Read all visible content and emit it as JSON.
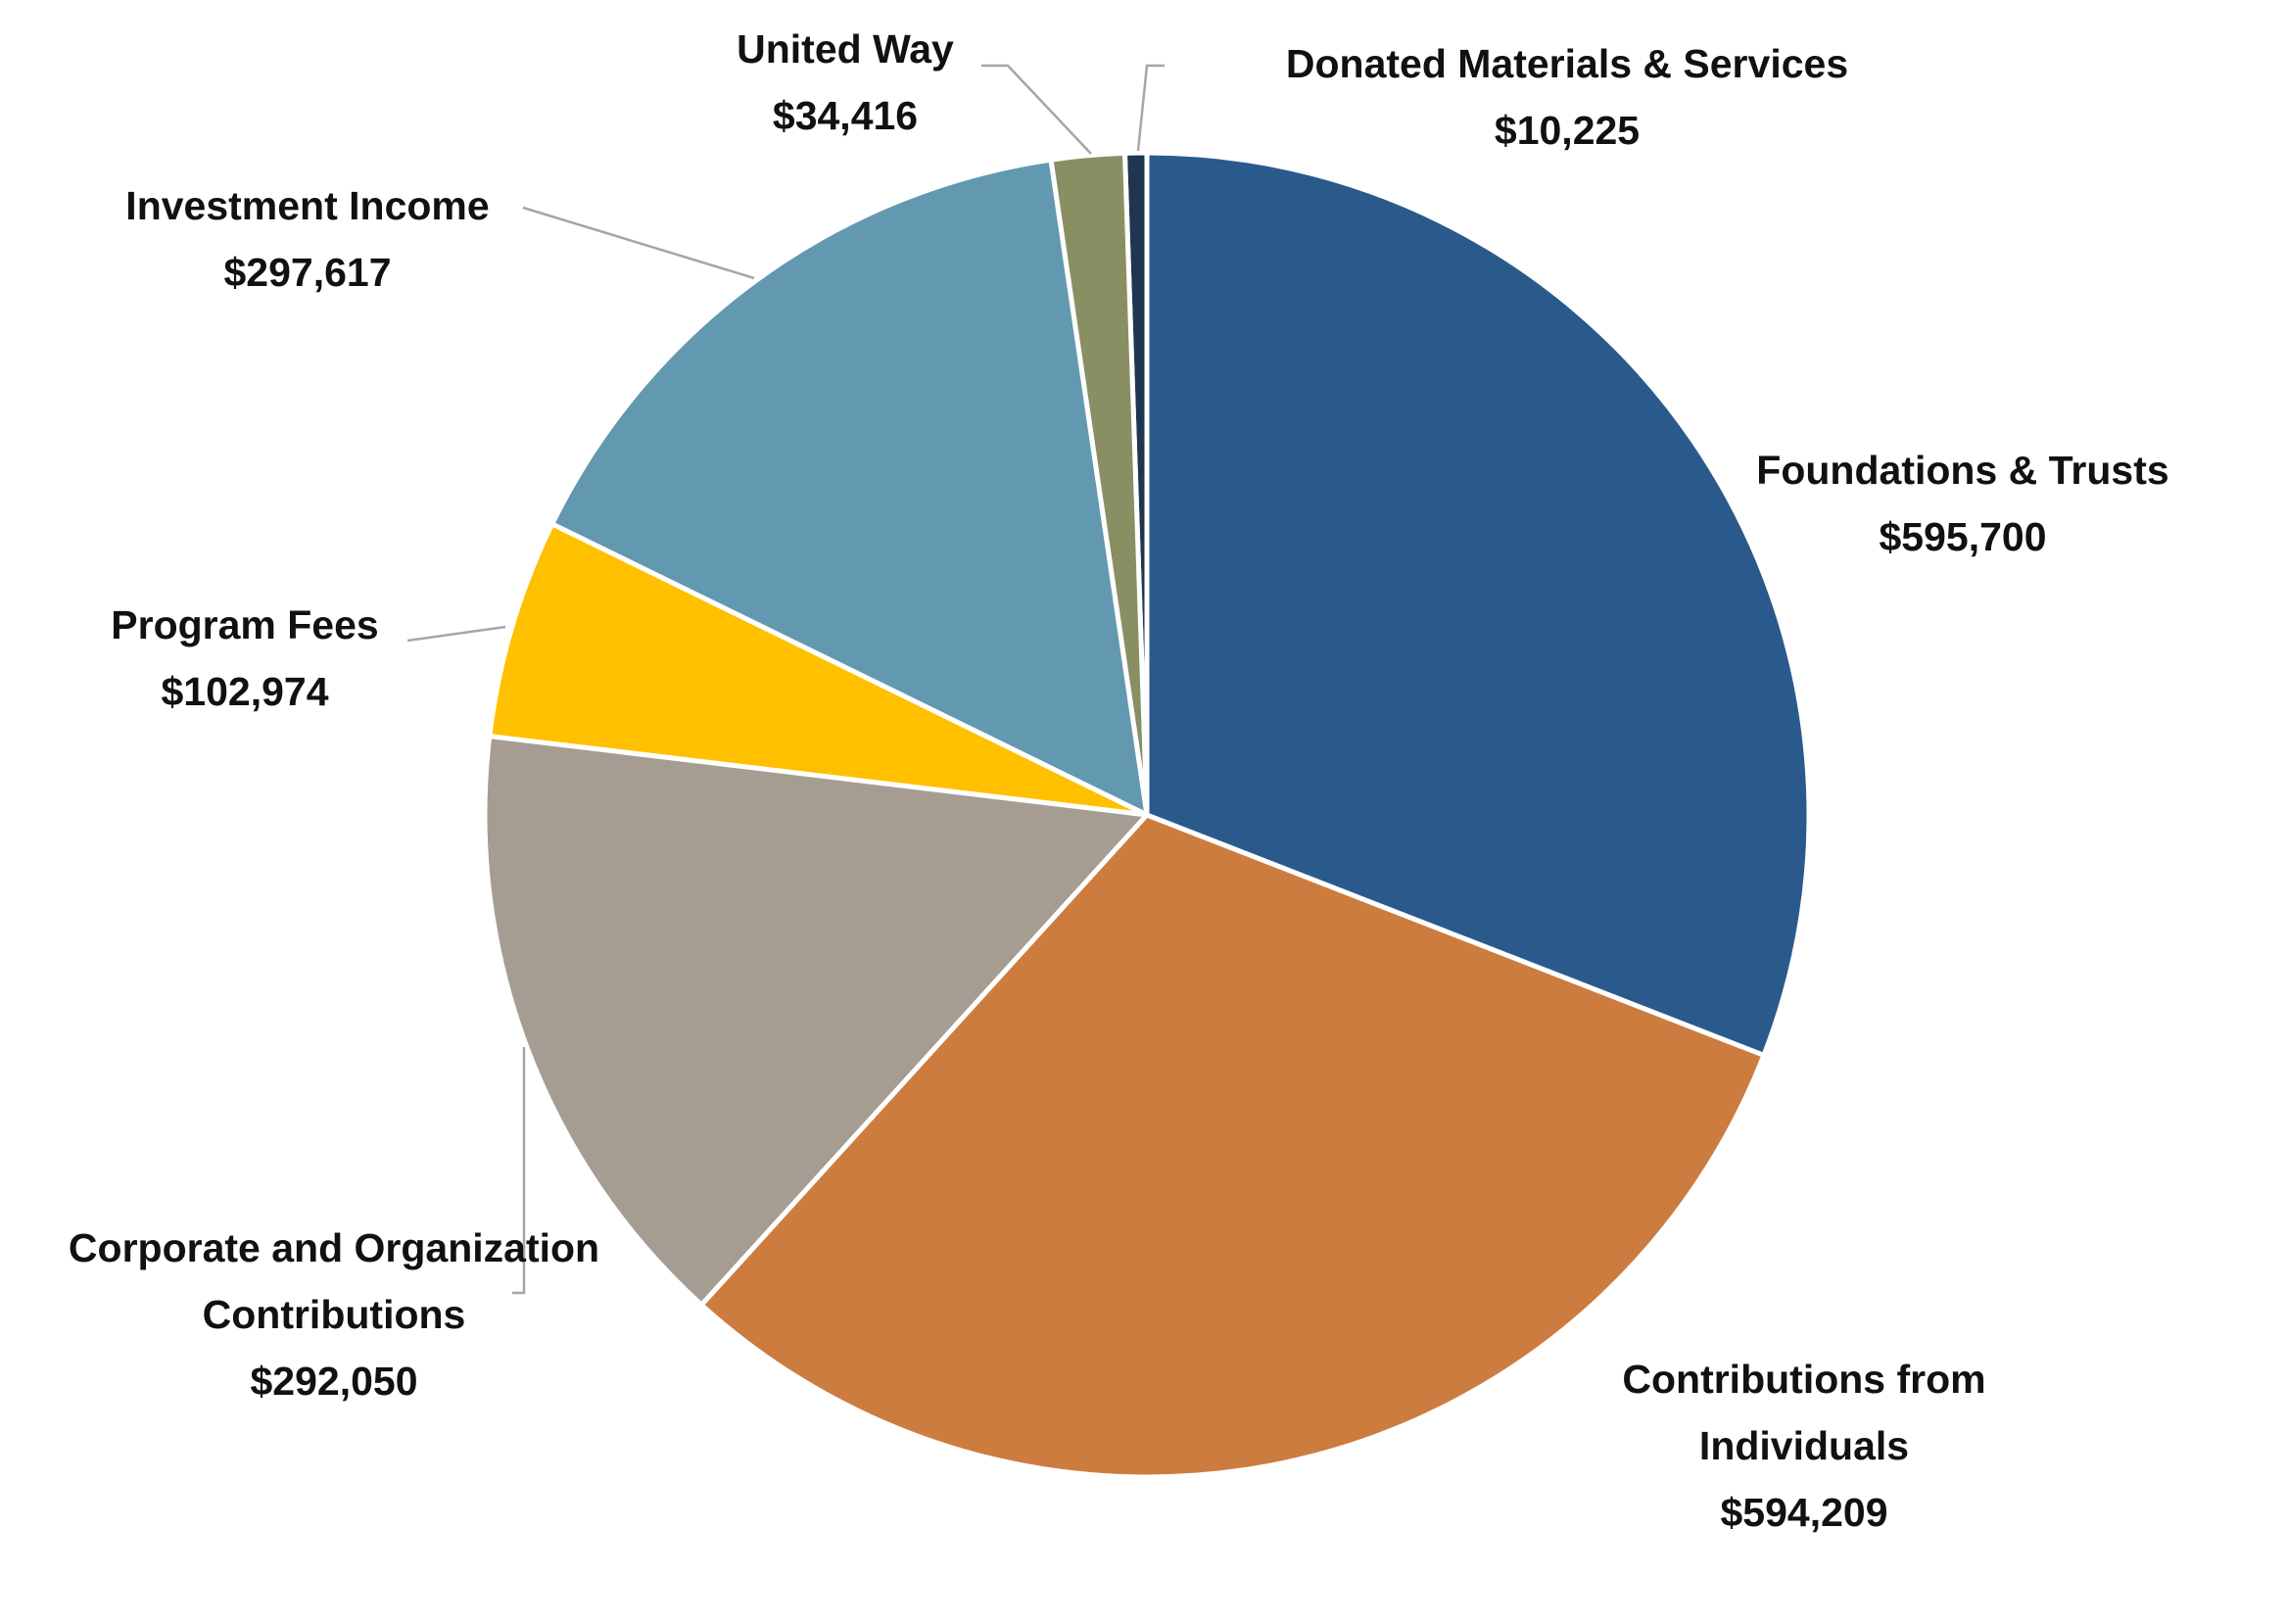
{
  "chart_data": {
    "type": "pie",
    "categories": [
      "Foundations & Trusts",
      "Contributions from Individuals",
      "Corporate and Organization Contributions",
      "Program Fees",
      "Investment Income",
      "United Way",
      "Donated Materials & Services"
    ],
    "values": [
      595700,
      594209,
      292050,
      102974,
      297617,
      34416,
      10225
    ],
    "value_labels": [
      "$595,700",
      "$594,209",
      "$292,050",
      "$102,974",
      "$297,617",
      "$34,416",
      "$10,225"
    ],
    "colors": [
      "#2a5a8c",
      "#cd7c3f",
      "#a59d92",
      "#ffc000",
      "#6399b0",
      "#8a8f63",
      "#1f3550"
    ]
  }
}
